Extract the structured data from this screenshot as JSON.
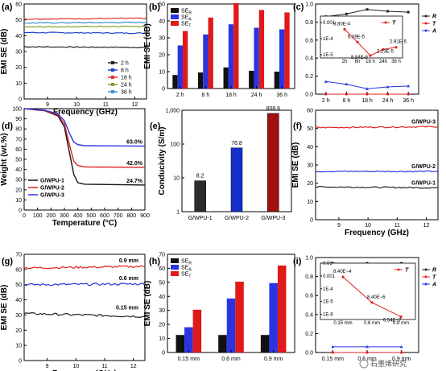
{
  "watermark": "石墨烯研究",
  "chart_data": [
    {
      "panel": "(a)",
      "type": "line",
      "xlabel": "Frequency (GHz)",
      "ylabel": "EMI SE (dB)",
      "xlim": [
        8.2,
        12.4
      ],
      "ylim": [
        0,
        60
      ],
      "xticks": [
        8,
        9,
        10,
        11,
        12
      ],
      "yticks": [
        0,
        10,
        20,
        30,
        40,
        50,
        60
      ],
      "legend_position": "bottom-right",
      "series": [
        {
          "name": "2 h",
          "color": "#222222",
          "values": [
            33,
            32.6
          ]
        },
        {
          "name": "8 h",
          "color": "#1f3fcf",
          "values": [
            42,
            41.6
          ]
        },
        {
          "name": "18 h",
          "color": "#e03030",
          "values": [
            50.5,
            51
          ]
        },
        {
          "name": "24 h",
          "color": "#7aa329",
          "values": [
            45.5,
            46
          ]
        },
        {
          "name": "36 h",
          "color": "#3a8fd8",
          "values": [
            48,
            48.4
          ]
        }
      ]
    },
    {
      "panel": "(b)",
      "type": "bar",
      "ylabel": "EMI SE (dB)",
      "ylim": [
        0,
        50
      ],
      "yticks": [
        0,
        10,
        20,
        30,
        40,
        50
      ],
      "categories": [
        "2 h",
        "8 h",
        "18 h",
        "24 h",
        "36 h"
      ],
      "legend_position": "top-left",
      "series": [
        {
          "name": "SE",
          "sub": "R",
          "color": "#111111",
          "values": [
            8,
            9.5,
            12.5,
            10.5,
            10
          ]
        },
        {
          "name": "SE",
          "sub": "A",
          "color": "#2a35e0",
          "values": [
            25.5,
            32,
            38,
            36,
            35
          ]
        },
        {
          "name": "SE",
          "sub": "T",
          "color": "#e01919",
          "values": [
            34,
            42,
            50.5,
            46.5,
            45
          ]
        }
      ]
    },
    {
      "panel": "(c)",
      "type": "line",
      "categories": [
        "2 h",
        "8 h",
        "18 h",
        "24 h",
        "36 h"
      ],
      "ylim": [
        0,
        1
      ],
      "yticks": [
        0.0,
        0.2,
        0.4,
        0.6,
        0.8,
        1.0
      ],
      "legend_position": "right",
      "series": [
        {
          "name": "R",
          "color": "#222222",
          "values": [
            0.86,
            0.89,
            0.94,
            0.92,
            0.91
          ]
        },
        {
          "name": "T",
          "color": "#e02020",
          "values": [
            0.0,
            0.0,
            0.0,
            0.0,
            0.0
          ]
        },
        {
          "name": "A",
          "color": "#2a35e0",
          "values": [
            0.14,
            0.11,
            0.06,
            0.08,
            0.09
          ]
        }
      ],
      "inset": {
        "categories": [
          "2h",
          "8h",
          "18 h",
          "24h",
          "36 h"
        ],
        "yticks": [
          "1E-5",
          "1E-4",
          "0.001"
        ],
        "legend": "T",
        "values": [
          0.00038,
          6.09e-05,
          8.84e-06,
          2.13e-05,
          2.91e-05
        ],
        "labels": [
          "3.80E-4",
          "6.09E-5",
          "8.84E-6",
          "2.13E-5",
          "2.91E-5"
        ]
      }
    },
    {
      "panel": "(d)",
      "type": "line",
      "xlabel": "Temperature (°C)",
      "ylabel": "Weight (wt.%)",
      "xlim": [
        0,
        900
      ],
      "ylim": [
        0,
        100
      ],
      "xticks": [
        0,
        100,
        200,
        300,
        400,
        500,
        600,
        700,
        800,
        900
      ],
      "yticks": [
        0,
        10,
        20,
        30,
        40,
        50,
        60,
        70,
        80,
        90,
        100
      ],
      "legend_position": "bottom-left",
      "series": [
        {
          "name": "G/WPU-1",
          "color": "#111111",
          "end_label": "24.7%",
          "x": [
            0,
            150,
            250,
            300,
            340,
            370,
            400,
            450,
            900
          ],
          "values": [
            100,
            98,
            93,
            82,
            55,
            35,
            27,
            25.5,
            24.7
          ]
        },
        {
          "name": "G/WPU-2",
          "color": "#e02020",
          "end_label": "42.0%",
          "x": [
            0,
            150,
            250,
            300,
            340,
            370,
            400,
            450,
            900
          ],
          "values": [
            100,
            98,
            94,
            85,
            63,
            48,
            44,
            42.5,
            42.0
          ]
        },
        {
          "name": "G/WPU-3",
          "color": "#2a35e0",
          "end_label": "63.0%",
          "x": [
            0,
            150,
            250,
            300,
            340,
            370,
            400,
            450,
            900
          ],
          "values": [
            100,
            98.5,
            95,
            88,
            75,
            67,
            64.5,
            63.5,
            63.0
          ]
        }
      ]
    },
    {
      "panel": "(e)",
      "type": "bar",
      "ylabel": "Conducivity (S/m)",
      "yscale": "log",
      "ylim": [
        1,
        1000
      ],
      "yticks": [
        "1",
        "10",
        "100",
        "1,000"
      ],
      "categories": [
        "G/WPU-1",
        "G/WPU-2",
        "G/WPU-3"
      ],
      "colors": [
        "#2b2b2b",
        "#1530c8",
        "#a01010"
      ],
      "values": [
        8.2,
        76.8,
        808.6
      ],
      "value_labels": [
        "8.2",
        "76.8",
        "808.6"
      ]
    },
    {
      "panel": "(f)",
      "type": "line",
      "xlabel": "Frequency (GHz)",
      "ylabel": "EMI SE (dB)",
      "xlim": [
        8.2,
        12.4
      ],
      "ylim": [
        0,
        60
      ],
      "xticks": [
        8,
        9,
        10,
        11,
        12
      ],
      "yticks": [
        0,
        10,
        20,
        30,
        40,
        50,
        60
      ],
      "series": [
        {
          "name": "G/WPU-1",
          "color": "#222222",
          "values": [
            18,
            17.5
          ]
        },
        {
          "name": "G/WPU-2",
          "color": "#2a35e0",
          "values": [
            26.5,
            26.5
          ]
        },
        {
          "name": "G/WPU-3",
          "color": "#e02020",
          "values": [
            50.5,
            51
          ]
        }
      ]
    },
    {
      "panel": "(g)",
      "type": "line",
      "xlabel": "Frequency (GHz)",
      "ylabel": "EMI SE (dB)",
      "xlim": [
        8.2,
        12.4
      ],
      "ylim": [
        0,
        70
      ],
      "xticks": [
        8,
        9,
        10,
        11,
        12
      ],
      "yticks": [
        0,
        10,
        20,
        30,
        40,
        50,
        60,
        70
      ],
      "series": [
        {
          "name": "0.15 mm",
          "color": "#222222",
          "values": [
            31,
            29
          ]
        },
        {
          "name": "0.6 mm",
          "color": "#2a35e0",
          "values": [
            50,
            50.5
          ]
        },
        {
          "name": "0.9 mm",
          "color": "#e02020",
          "values": [
            61,
            62
          ]
        }
      ]
    },
    {
      "panel": "(h)",
      "type": "bar",
      "ylabel": "EMI SE (dB)",
      "ylim": [
        0,
        70
      ],
      "yticks": [
        0,
        10,
        20,
        30,
        40,
        50,
        60,
        70
      ],
      "categories": [
        "0.15 mm",
        "0.6 mm",
        "0.9 mm"
      ],
      "legend_position": "top-left",
      "series": [
        {
          "name": "SE",
          "sub": "R",
          "color": "#111111",
          "values": [
            12.5,
            12.5,
            12.5
          ]
        },
        {
          "name": "SE",
          "sub": "A",
          "color": "#2a35e0",
          "values": [
            18,
            38.5,
            49.5
          ]
        },
        {
          "name": "SE",
          "sub": "T",
          "color": "#e01919",
          "values": [
            30.5,
            50.5,
            62
          ]
        }
      ]
    },
    {
      "panel": "(i)",
      "type": "line",
      "categories": [
        "0.15 mm",
        "0.6 mm",
        "0.9 mm"
      ],
      "ylim": [
        0,
        1
      ],
      "yticks": [
        0.0,
        0.2,
        0.4,
        0.6,
        0.8,
        1.0
      ],
      "legend_position": "right",
      "series": [
        {
          "name": "R",
          "color": "#222222",
          "values": [
            0.94,
            0.94,
            0.94
          ]
        },
        {
          "name": "T",
          "color": "#e02020",
          "values": [
            0.0,
            0.0,
            0.0
          ]
        },
        {
          "name": "A",
          "color": "#2a35e0",
          "values": [
            0.06,
            0.06,
            0.06
          ]
        }
      ],
      "inset": {
        "categories": [
          "0.15 mm",
          "0.6 mm",
          "0.9 mm"
        ],
        "yticks": [
          "1E-6",
          "1E-5",
          "1E-4",
          "0.001",
          "0.01"
        ],
        "legend": "T",
        "values": [
          0.00084,
          8.4e-06,
          6.54e-07
        ],
        "labels": [
          "8.40E−4",
          "8.40E−6",
          "6.54E−7"
        ]
      }
    }
  ]
}
